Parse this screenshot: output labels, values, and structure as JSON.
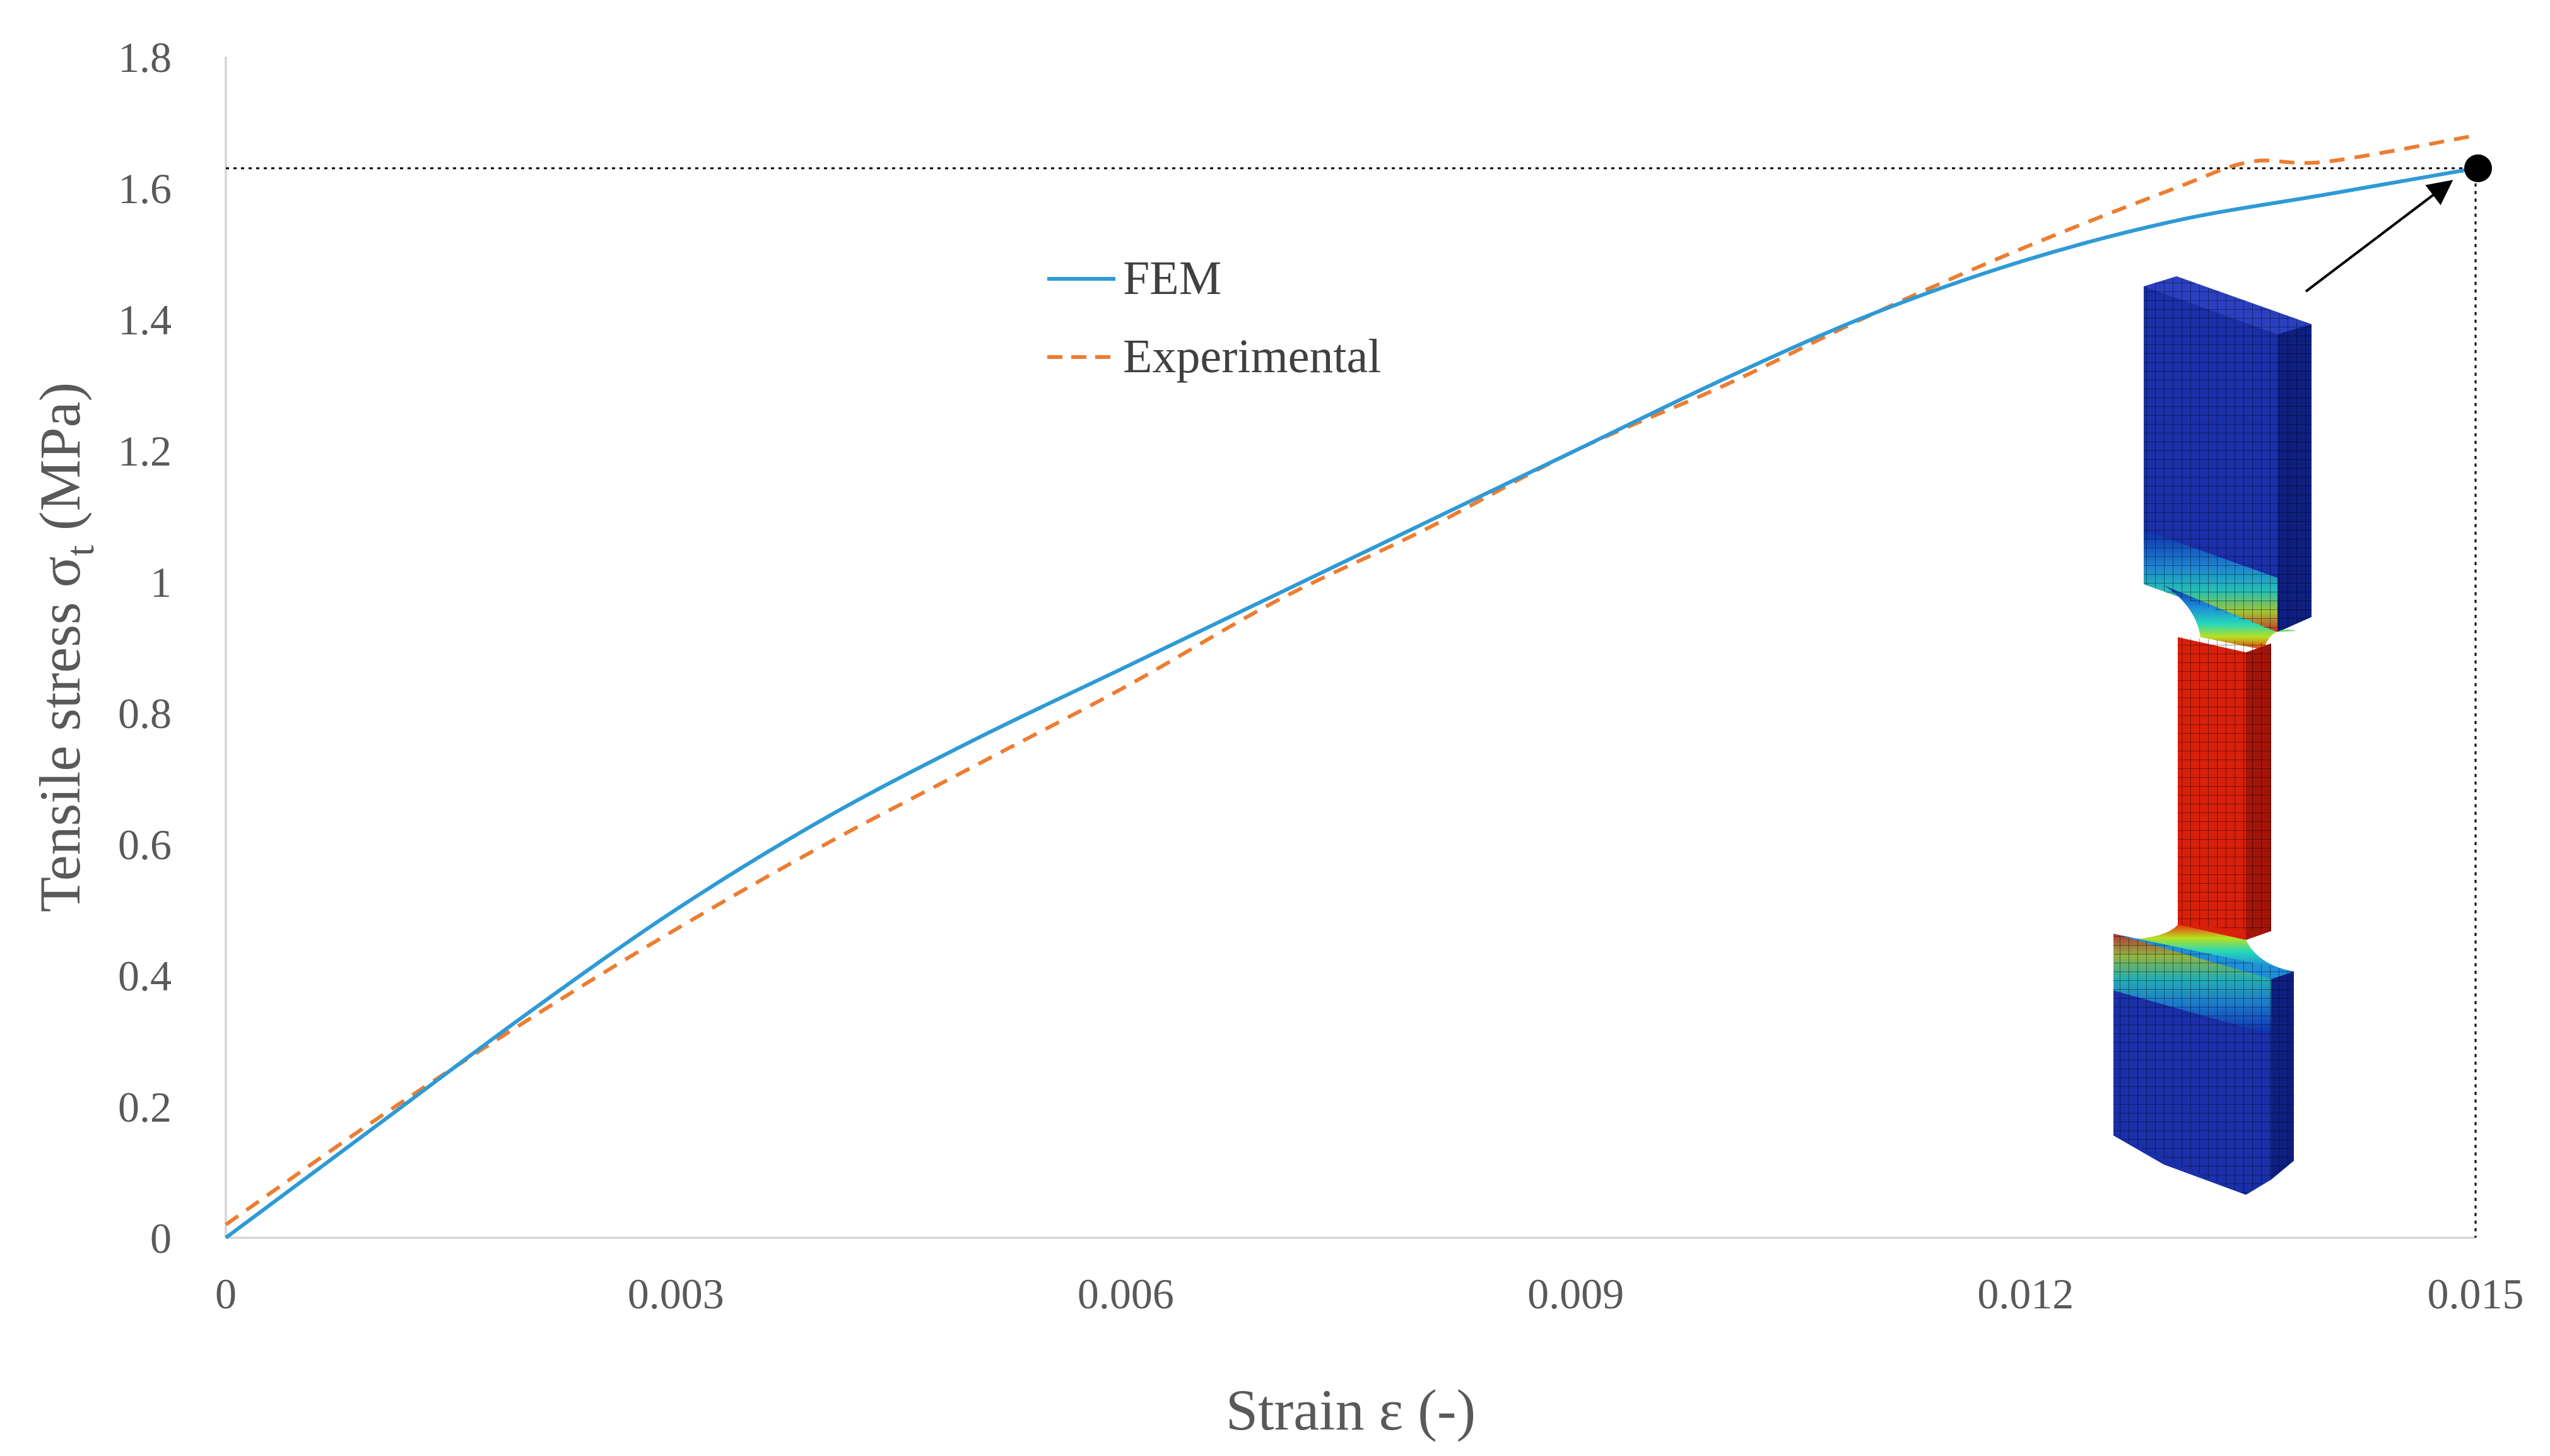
{
  "chart_data": {
    "type": "line",
    "xlabel": "Strain ε (-)",
    "ylabel_main": "Tensile stress σ",
    "ylabel_sub": "t",
    "ylabel_unit": " (MPa)",
    "xlim": [
      0,
      0.015
    ],
    "ylim": [
      0,
      1.8
    ],
    "x_ticks": [
      "0",
      "0.003",
      "0.006",
      "0.009",
      "0.012",
      "0.015"
    ],
    "y_ticks": [
      "0",
      "0.2",
      "0.4",
      "0.6",
      "0.8",
      "1",
      "1.2",
      "1.4",
      "1.6",
      "1.8"
    ],
    "grid": false,
    "legend_position": "upper-center",
    "series": [
      {
        "name": "FEM",
        "color": "#2E9AD6",
        "style": "solid",
        "x": [
          0,
          0.001,
          0.002,
          0.003,
          0.004,
          0.005,
          0.006,
          0.007,
          0.008,
          0.009,
          0.01,
          0.011,
          0.012,
          0.013,
          0.014,
          0.015
        ],
        "y": [
          0,
          0.17,
          0.34,
          0.5,
          0.64,
          0.76,
          0.87,
          0.98,
          1.09,
          1.2,
          1.31,
          1.41,
          1.49,
          1.55,
          1.59,
          1.63
        ]
      },
      {
        "name": "Experimental",
        "color": "#ED7D31",
        "style": "dashed",
        "x": [
          0,
          0.001,
          0.002,
          0.003,
          0.004,
          0.005,
          0.006,
          0.007,
          0.008,
          0.009,
          0.01,
          0.011,
          0.012,
          0.013,
          0.0135,
          0.014,
          0.015
        ],
        "y": [
          0.02,
          0.18,
          0.33,
          0.47,
          0.6,
          0.72,
          0.84,
          0.97,
          1.08,
          1.2,
          1.3,
          1.41,
          1.51,
          1.6,
          1.64,
          1.64,
          1.68
        ]
      }
    ],
    "marker_point": {
      "x": 0.015,
      "y": 1.63
    },
    "inset": "fem-specimen-stress-contour"
  }
}
